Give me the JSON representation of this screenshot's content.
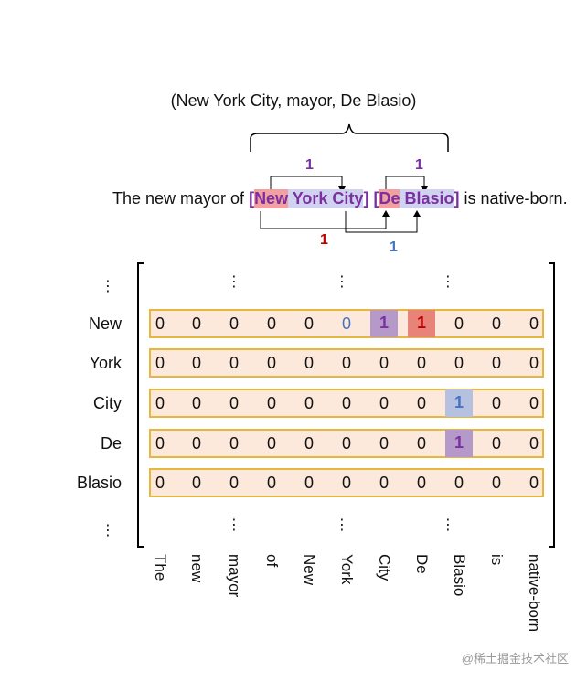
{
  "triple": "(New York City, mayor, De Blasio)",
  "sentence": {
    "prefix": "The new mayor of ",
    "open1": "[",
    "new": "New",
    "york_city": " York City",
    "close1": "]",
    "space": " ",
    "open2": "[",
    "de": "De",
    "blasio": " Blasio",
    "close2": "]",
    "suffix": " is native-born."
  },
  "edge_labels": {
    "top_left": "1",
    "top_right": "1",
    "bottom_left": "1",
    "bottom_right": "1"
  },
  "colors": {
    "purple": "#7b2fa0",
    "red": "#c00000",
    "blue": "#4472c4",
    "row_fill": "#fde8dc",
    "row_border": "#e6b73c"
  },
  "ellipsis": "⋮",
  "row_labels": [
    "New",
    "York",
    "City",
    "De",
    "Blasio"
  ],
  "column_labels": [
    "The",
    "new",
    "mayor",
    "of",
    "New",
    "York",
    "City",
    "De",
    "Blasio",
    "is",
    "native-born"
  ],
  "matrix": [
    [
      "0",
      "0",
      "0",
      "0",
      "0",
      "0",
      "1",
      "1",
      "0",
      "0",
      "0"
    ],
    [
      "0",
      "0",
      "0",
      "0",
      "0",
      "0",
      "0",
      "0",
      "0",
      "0",
      "0"
    ],
    [
      "0",
      "0",
      "0",
      "0",
      "0",
      "0",
      "0",
      "0",
      "1",
      "0",
      "0"
    ],
    [
      "0",
      "0",
      "0",
      "0",
      "0",
      "0",
      "0",
      "0",
      "1",
      "0",
      "0"
    ],
    [
      "0",
      "0",
      "0",
      "0",
      "0",
      "0",
      "0",
      "0",
      "0",
      "0",
      "0"
    ]
  ],
  "highlights": [
    {
      "row": 0,
      "col": 6,
      "style": "purple"
    },
    {
      "row": 0,
      "col": 7,
      "style": "red"
    },
    {
      "row": 2,
      "col": 8,
      "style": "blue"
    },
    {
      "row": 3,
      "col": 8,
      "style": "purple"
    }
  ],
  "watermark": "@稀土掘金技术社区"
}
